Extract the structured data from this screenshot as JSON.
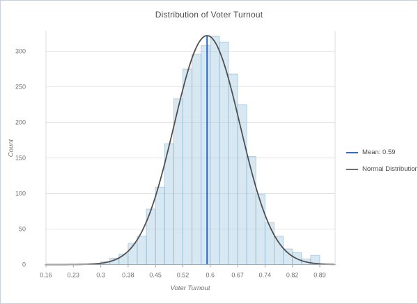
{
  "window": {
    "background": "#ffffff",
    "border_color": "#c7d1da"
  },
  "chart": {
    "title": "Distribution of Voter Turnout",
    "x_axis_label": "Voter Turnout",
    "y_axis_label": "Count"
  },
  "legend": {
    "items": [
      {
        "label": "Mean: 0.59",
        "color": "#2e6bcd",
        "swatch": "line"
      },
      {
        "label": "Normal Distribution",
        "color": "#6e6e6e",
        "swatch": "line"
      }
    ]
  },
  "chart_data": {
    "type": "histogram",
    "title": "Distribution of Voter Turnout",
    "xlabel": "Voter Turnout",
    "ylabel": "Count",
    "grid": true,
    "legend_position": "right",
    "x_axis": {
      "min": 0.1575,
      "tick_step": 0.0735,
      "tick_labels": [
        "0.16",
        "0.23",
        "0.3",
        "0.38",
        "0.45",
        "0.52",
        "0.6",
        "0.67",
        "0.74",
        "0.82",
        "0.89"
      ]
    },
    "y_axis": {
      "ticks": [
        0,
        50,
        100,
        150,
        200,
        250,
        300
      ],
      "max": 326
    },
    "bins": {
      "start": 0.3045,
      "width": 0.0245,
      "counts": [
        4,
        9,
        15,
        30,
        40,
        78,
        109,
        170,
        233,
        275,
        296,
        308,
        321,
        313,
        268,
        225,
        152,
        99,
        59,
        40,
        22,
        17,
        8,
        13
      ]
    },
    "mean_line": {
      "value": 0.59,
      "label": "Mean: 0.59",
      "color": "#2166c9"
    },
    "normal_curve": {
      "mean": 0.59,
      "sigma": 0.089,
      "peak": 322,
      "label": "Normal Distribution",
      "color": "#4f4f4f"
    },
    "colors": {
      "bar_fill": "rgba(168,205,226,0.45)",
      "bar_stroke": "rgba(139,181,208,0.6)",
      "grid": "#e4e4e4",
      "axis_line": "#a8a8a8",
      "side_line": "#dcdcdc",
      "tick_text": "#6e6e6e",
      "title_text": "#4d4d4d"
    }
  }
}
